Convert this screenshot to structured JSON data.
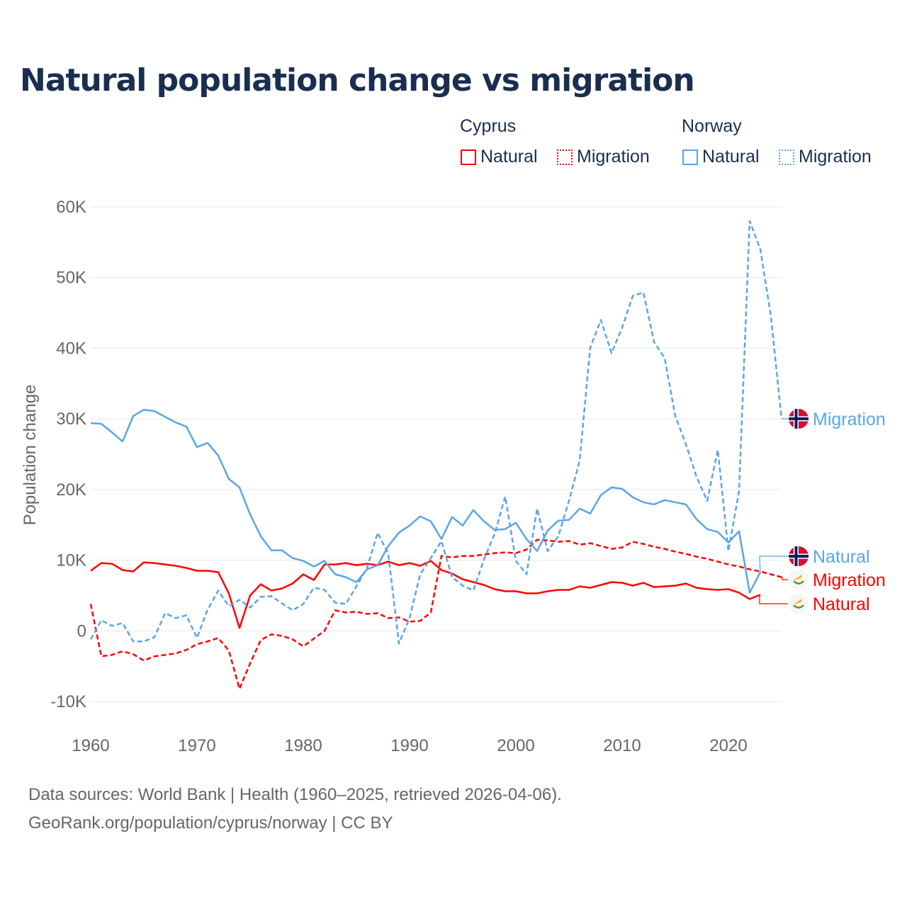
{
  "chart_data": {
    "type": "line",
    "title": "Natural population change vs migration",
    "xlabel": "",
    "ylabel": "Population change",
    "xlim": [
      1960,
      2025
    ],
    "ylim": [
      -10000,
      60000
    ],
    "grid": true,
    "x_ticks": [
      1960,
      1970,
      1980,
      1990,
      2000,
      2010,
      2020
    ],
    "x_tick_labels": [
      "1960",
      "1970",
      "1980",
      "1990",
      "2000",
      "2010",
      "2020"
    ],
    "y_ticks": [
      -10000,
      0,
      10000,
      20000,
      30000,
      40000,
      50000,
      60000
    ],
    "y_tick_labels": [
      "-10K",
      "0",
      "10K",
      "20K",
      "30K",
      "40K",
      "50K",
      "60K"
    ],
    "legend_position": "top-right",
    "legend": {
      "groups": [
        {
          "name": "Cyprus",
          "items": [
            "Natural",
            "Migration"
          ]
        },
        {
          "name": "Norway",
          "items": [
            "Natural",
            "Migration"
          ]
        }
      ]
    },
    "series": [
      {
        "name": "Cyprus Natural",
        "label": "Natural",
        "country": "Cyprus",
        "color": "#ff0000",
        "dash": false,
        "start_year": 1960,
        "values": [
          8500,
          9600,
          9500,
          8600,
          8400,
          9700,
          9600,
          9400,
          9200,
          8900,
          8500,
          8500,
          8300,
          5300,
          400,
          5000,
          6600,
          5700,
          6000,
          6700,
          8000,
          7200,
          9400,
          9400,
          9600,
          9300,
          9500,
          9300,
          9800,
          9300,
          9600,
          9200,
          9900,
          8600,
          8100,
          7300,
          6900,
          6500,
          5900,
          5600,
          5600,
          5300,
          5300,
          5600,
          5800,
          5800,
          6300,
          6100,
          6500,
          6900,
          6800,
          6400,
          6800,
          6200,
          6300,
          6400,
          6700,
          6100,
          5900,
          5800,
          5900,
          5400,
          4500,
          5100
        ]
      },
      {
        "name": "Cyprus Migration",
        "label": "Migration",
        "country": "Cyprus",
        "color": "#ff0000",
        "dash": true,
        "start_year": 1960,
        "values": [
          3800,
          -3600,
          -3400,
          -2900,
          -3300,
          -4200,
          -3600,
          -3400,
          -3200,
          -2700,
          -1900,
          -1500,
          -1000,
          -2800,
          -8200,
          -4600,
          -1300,
          -500,
          -700,
          -1200,
          -2200,
          -1100,
          0,
          2900,
          2600,
          2700,
          2400,
          2500,
          1800,
          1900,
          1300,
          1400,
          2600,
          10600,
          10400,
          10600,
          10600,
          10800,
          11000,
          11100,
          11000,
          11500,
          12900,
          12800,
          12600,
          12700,
          12200,
          12400,
          12000,
          11600,
          11800,
          12600,
          12300,
          11900,
          11600,
          11200,
          10900,
          10500,
          10200,
          9800,
          9400,
          9100,
          8700,
          8400,
          8000,
          7600
        ]
      },
      {
        "name": "Norway Natural",
        "label": "Natural",
        "country": "Norway",
        "color": "#5aa5e8",
        "dash": false,
        "start_year": 1960,
        "values": [
          29400,
          29300,
          28100,
          26800,
          30400,
          31300,
          31100,
          30300,
          29500,
          28900,
          26000,
          26600,
          24800,
          21500,
          20300,
          16500,
          13400,
          11400,
          11400,
          10300,
          9900,
          9100,
          9900,
          8000,
          7600,
          6900,
          8700,
          9300,
          12000,
          13900,
          14900,
          16200,
          15500,
          13000,
          16100,
          14900,
          17100,
          15500,
          14300,
          14400,
          15300,
          13000,
          11300,
          14200,
          15600,
          15700,
          17300,
          16600,
          19200,
          20300,
          20100,
          18900,
          18200,
          17900,
          18500,
          18200,
          17900,
          15800,
          14400,
          14000,
          12500,
          14100,
          5400,
          8300
        ]
      },
      {
        "name": "Norway Migration",
        "label": "Migration",
        "country": "Norway",
        "color": "#5aa5e8",
        "dash": true,
        "start_year": 1960,
        "values": [
          -1200,
          1500,
          700,
          1100,
          -1500,
          -1500,
          -900,
          2500,
          1800,
          2200,
          -1000,
          3000,
          5700,
          3500,
          4400,
          3300,
          4800,
          4900,
          3900,
          2900,
          3800,
          6100,
          5800,
          4000,
          3800,
          6300,
          8900,
          13900,
          10900,
          -1800,
          1800,
          8000,
          10300,
          12700,
          7600,
          6400,
          5700,
          10100,
          13700,
          19000,
          9900,
          8000,
          17300,
          11300,
          13400,
          18400,
          24100,
          40100,
          44000,
          39300,
          42900,
          47400,
          47900,
          40900,
          38600,
          30400,
          26400,
          21800,
          18400,
          25600,
          11300,
          19800,
          58000,
          54000,
          44500,
          30000
        ]
      }
    ]
  },
  "footer": {
    "line1": "Data sources: World Bank | Health (1960–2025, retrieved 2026-04-06).",
    "line2": "GeoRank.org/population/cyprus/norway | CC BY"
  }
}
